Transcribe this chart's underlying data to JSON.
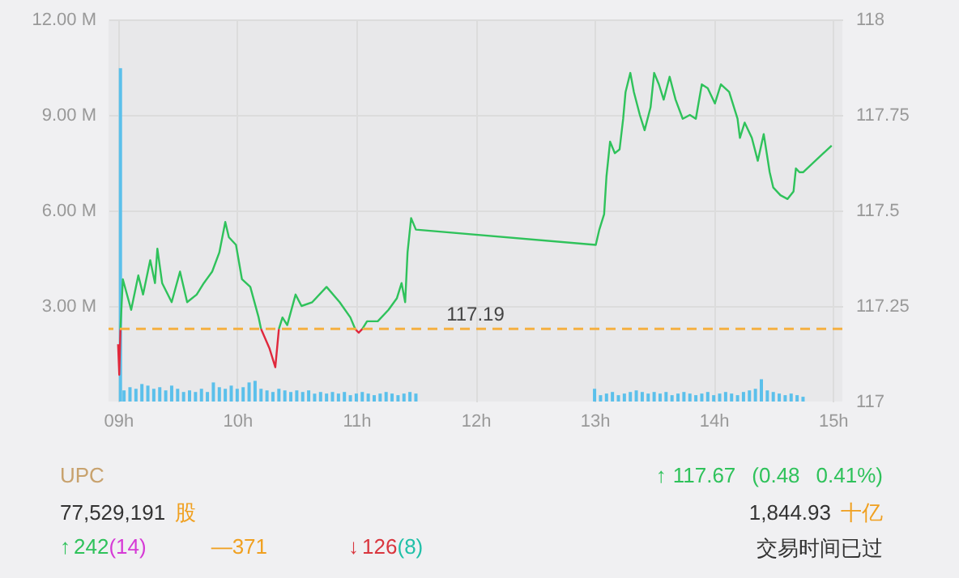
{
  "chart_data": {
    "type": "line",
    "series": [
      {
        "type": "bar",
        "axis": "y",
        "color": "#5bc0eb",
        "x": [
          9.02,
          9.05,
          9.1,
          9.15,
          9.2,
          9.25,
          9.3,
          9.35,
          9.4,
          9.45,
          9.5,
          9.55,
          9.6,
          9.65,
          9.7,
          9.75,
          9.8,
          9.85,
          9.9,
          9.95,
          10.0,
          10.05,
          10.1,
          10.15,
          10.2,
          10.25,
          10.3,
          10.35,
          10.4,
          10.45,
          10.5,
          10.55,
          10.6,
          10.65,
          10.7,
          10.75,
          10.8,
          10.85,
          10.9,
          10.95,
          11.0,
          11.05,
          11.1,
          11.15,
          11.2,
          11.25,
          11.3,
          11.35,
          11.4,
          11.45,
          11.5,
          13.0,
          13.05,
          13.1,
          13.15,
          13.2,
          13.25,
          13.3,
          13.35,
          13.4,
          13.45,
          13.5,
          13.55,
          13.6,
          13.65,
          13.7,
          13.75,
          13.8,
          13.85,
          13.9,
          13.95,
          14.0,
          14.05,
          14.1,
          14.15,
          14.2,
          14.25,
          14.3,
          14.35,
          14.4,
          14.45,
          14.5,
          14.55,
          14.6,
          14.65,
          14.7,
          14.75
        ],
        "values": [
          10.47,
          0.35,
          0.45,
          0.4,
          0.55,
          0.5,
          0.4,
          0.45,
          0.35,
          0.5,
          0.4,
          0.3,
          0.35,
          0.3,
          0.4,
          0.3,
          0.6,
          0.45,
          0.4,
          0.5,
          0.4,
          0.45,
          0.6,
          0.65,
          0.4,
          0.35,
          0.3,
          0.4,
          0.35,
          0.3,
          0.35,
          0.3,
          0.35,
          0.25,
          0.3,
          0.25,
          0.3,
          0.25,
          0.3,
          0.2,
          0.25,
          0.3,
          0.25,
          0.2,
          0.25,
          0.3,
          0.25,
          0.2,
          0.25,
          0.3,
          0.25,
          0.4,
          0.2,
          0.25,
          0.3,
          0.2,
          0.25,
          0.3,
          0.35,
          0.3,
          0.25,
          0.3,
          0.25,
          0.3,
          0.2,
          0.25,
          0.3,
          0.25,
          0.2,
          0.25,
          0.3,
          0.2,
          0.25,
          0.3,
          0.25,
          0.2,
          0.3,
          0.35,
          0.4,
          0.7,
          0.35,
          0.3,
          0.25,
          0.2,
          0.25,
          0.2,
          0.15
        ]
      },
      {
        "axis": "y2",
        "color": "#2fc25b",
        "x": [
          9.02,
          9.04,
          9.11,
          9.17,
          9.21,
          9.27,
          9.31,
          9.33,
          9.37,
          9.45,
          9.52,
          9.58,
          9.66,
          9.72,
          9.79,
          9.85,
          9.9,
          9.93,
          9.99,
          10.04,
          10.11,
          10.18,
          10.2
        ],
        "values": [
          117.19,
          117.32,
          117.24,
          117.33,
          117.28,
          117.37,
          117.31,
          117.4,
          117.31,
          117.26,
          117.34,
          117.26,
          117.28,
          117.31,
          117.34,
          117.39,
          117.47,
          117.43,
          117.41,
          117.32,
          117.3,
          117.22,
          117.19
        ]
      },
      {
        "axis": "y2",
        "color": "#2fc25b",
        "x": [
          10.35,
          10.38,
          10.42,
          10.49,
          10.54,
          10.63,
          10.75,
          10.86,
          10.95,
          10.99
        ],
        "values": [
          117.19,
          117.22,
          117.2,
          117.28,
          117.25,
          117.26,
          117.3,
          117.26,
          117.22,
          117.19
        ]
      },
      {
        "axis": "y2",
        "color": "#2fc25b",
        "x": [
          11.05,
          11.09,
          11.18,
          11.27,
          11.34,
          11.38,
          11.41,
          11.43,
          11.46,
          11.5,
          13.01,
          13.04,
          13.08,
          13.1,
          13.13,
          13.17,
          13.21,
          13.24,
          13.26,
          13.3,
          13.33,
          13.38,
          13.42,
          13.47,
          13.5,
          13.54,
          13.58,
          13.63,
          13.68,
          13.74,
          13.8,
          13.85,
          13.9,
          13.95,
          14.01,
          14.06,
          14.13,
          14.2,
          14.22,
          14.26,
          14.32,
          14.37,
          14.42,
          14.47,
          14.5,
          14.56,
          14.62,
          14.67,
          14.69,
          14.72,
          14.75,
          14.99
        ],
        "values": [
          117.19,
          117.21,
          117.21,
          117.24,
          117.27,
          117.31,
          117.26,
          117.39,
          117.48,
          117.45,
          117.41,
          117.45,
          117.49,
          117.59,
          117.68,
          117.65,
          117.66,
          117.74,
          117.81,
          117.86,
          117.81,
          117.75,
          117.71,
          117.77,
          117.86,
          117.83,
          117.79,
          117.85,
          117.79,
          117.74,
          117.75,
          117.74,
          117.83,
          117.82,
          117.78,
          117.83,
          117.81,
          117.74,
          117.69,
          117.73,
          117.69,
          117.63,
          117.7,
          117.6,
          117.56,
          117.54,
          117.53,
          117.55,
          117.61,
          117.6,
          117.6,
          117.67
        ]
      },
      {
        "axis": "y2",
        "color": "#e0283c",
        "x": [
          9.0,
          9.01,
          9.02
        ],
        "values": [
          117.15,
          117.07,
          117.19
        ]
      },
      {
        "axis": "y2",
        "color": "#e0283c",
        "x": [
          10.2,
          10.27,
          10.32,
          10.35
        ],
        "values": [
          117.19,
          117.14,
          117.09,
          117.19
        ]
      },
      {
        "axis": "y2",
        "color": "#e0283c",
        "x": [
          10.99,
          11.02,
          11.05
        ],
        "values": [
          117.19,
          117.18,
          117.19
        ]
      }
    ],
    "xlim": [
      8.92,
      15.08
    ],
    "xticks": [
      {
        "value": 9,
        "label": "09h"
      },
      {
        "value": 10,
        "label": "10h"
      },
      {
        "value": 11,
        "label": "11h"
      },
      {
        "value": 12,
        "label": "12h"
      },
      {
        "value": 13,
        "label": "13h"
      },
      {
        "value": 14,
        "label": "14h"
      },
      {
        "value": 15,
        "label": "15h"
      }
    ],
    "ylim": [
      0,
      12
    ],
    "yticks": [
      {
        "value": 3,
        "label": "3.00 M"
      },
      {
        "value": 6,
        "label": "6.00 M"
      },
      {
        "value": 9,
        "label": "9.00 M"
      },
      {
        "value": 12,
        "label": "12.00 M"
      }
    ],
    "y2lim": [
      117,
      118
    ],
    "y2ticks": [
      117,
      117.25,
      117.5,
      117.75,
      118
    ],
    "grid": true,
    "ref_lines": [
      {
        "axis": "y2",
        "value": 117.19,
        "label": "117.19",
        "color": "#f5b041",
        "line_style": "dashed"
      }
    ],
    "annotations": [
      "UPC",
      "77,529,191",
      "股",
      "↑",
      "242",
      "(14)",
      "—371",
      "↓",
      "126",
      "(8)",
      "↑",
      "117.67",
      "(0.48",
      "0.41%)",
      "1,844.93",
      "十亿",
      "交易时间已过"
    ]
  }
}
